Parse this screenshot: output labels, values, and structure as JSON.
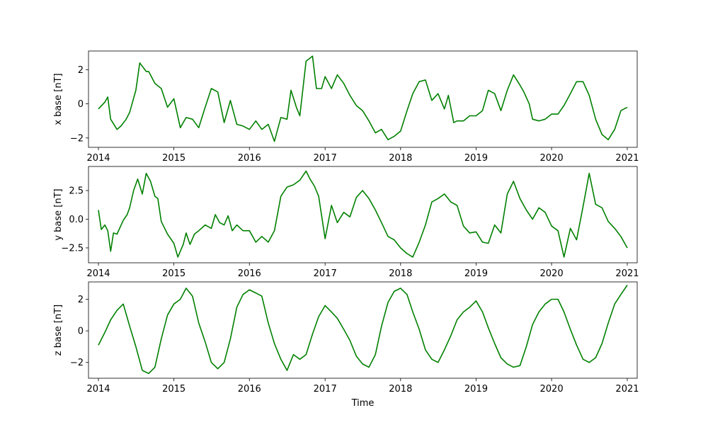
{
  "chart_data": {
    "type": "line",
    "xlabel": "Time",
    "x_range": [
      "2013-11-14",
      "2021-02-18"
    ],
    "x_ticks": [
      "2014",
      "2015",
      "2016",
      "2017",
      "2018",
      "2019",
      "2020",
      "2021"
    ],
    "line_color": "#008000",
    "grid": false,
    "panels": [
      {
        "ylabel": "x base [nT]",
        "ylim": [
          -2.55,
          3.1
        ],
        "yticks": [
          -2,
          0,
          2
        ],
        "ytick_labels": [
          "−2",
          "0",
          "2"
        ],
        "x": [
          "2014-01-01",
          "2014-02-01",
          "2014-02-15",
          "2014-03-01",
          "2014-04-01",
          "2014-04-20",
          "2014-05-15",
          "2014-06-01",
          "2014-07-01",
          "2014-07-20",
          "2014-08-20",
          "2014-09-01",
          "2014-10-01",
          "2014-11-01",
          "2014-12-01",
          "2015-01-01",
          "2015-02-01",
          "2015-03-01",
          "2015-04-01",
          "2015-05-01",
          "2015-06-01",
          "2015-07-01",
          "2015-08-01",
          "2015-09-01",
          "2015-10-01",
          "2015-11-01",
          "2015-12-01",
          "2016-01-01",
          "2016-02-01",
          "2016-03-01",
          "2016-04-01",
          "2016-05-01",
          "2016-06-01",
          "2016-07-01",
          "2016-07-20",
          "2016-08-15",
          "2016-09-01",
          "2016-10-01",
          "2016-11-01",
          "2016-11-20",
          "2016-12-15",
          "2017-01-01",
          "2017-02-01",
          "2017-03-01",
          "2017-04-01",
          "2017-05-01",
          "2017-06-01",
          "2017-07-01",
          "2017-08-01",
          "2017-09-01",
          "2017-10-01",
          "2017-11-01",
          "2017-12-01",
          "2018-01-01",
          "2018-02-01",
          "2018-03-01",
          "2018-04-01",
          "2018-05-01",
          "2018-06-01",
          "2018-07-01",
          "2018-08-01",
          "2018-08-20",
          "2018-09-15",
          "2018-10-01",
          "2018-11-01",
          "2018-12-01",
          "2019-01-01",
          "2019-02-01",
          "2019-03-01",
          "2019-04-01",
          "2019-05-01",
          "2019-06-01",
          "2019-07-01",
          "2019-08-01",
          "2019-08-20",
          "2019-09-15",
          "2019-10-01",
          "2019-11-01",
          "2019-12-01",
          "2020-01-01",
          "2020-02-01",
          "2020-03-01",
          "2020-04-01",
          "2020-05-01",
          "2020-06-01",
          "2020-07-01",
          "2020-08-01",
          "2020-09-01",
          "2020-10-01",
          "2020-11-01",
          "2020-12-01",
          "2021-01-01"
        ],
        "values": [
          -0.3,
          0.1,
          0.4,
          -0.9,
          -1.5,
          -1.3,
          -0.9,
          -0.5,
          0.8,
          2.4,
          1.9,
          1.9,
          1.2,
          0.9,
          -0.2,
          0.3,
          -1.4,
          -0.8,
          -0.9,
          -1.4,
          -0.2,
          0.9,
          0.7,
          -1.1,
          0.2,
          -1.2,
          -1.3,
          -1.5,
          -1.0,
          -1.5,
          -1.2,
          -2.2,
          -0.8,
          -0.9,
          0.8,
          -0.2,
          -0.7,
          2.5,
          2.8,
          0.9,
          0.9,
          1.6,
          0.9,
          1.7,
          1.2,
          0.5,
          -0.1,
          -0.4,
          -1.0,
          -1.7,
          -1.5,
          -2.1,
          -1.9,
          -1.6,
          -0.4,
          0.6,
          1.3,
          1.4,
          0.2,
          0.6,
          -0.3,
          0.5,
          -1.1,
          -1.0,
          -1.0,
          -0.7,
          -0.7,
          -0.4,
          0.8,
          0.6,
          -0.4,
          0.8,
          1.7,
          1.1,
          0.7,
          0.0,
          -0.9,
          -1.0,
          -0.9,
          -0.6,
          -0.6,
          -0.1,
          0.6,
          1.3,
          1.3,
          0.5,
          -0.9,
          -1.8,
          -2.1,
          -1.5,
          -0.4,
          -0.2
        ],
        "note_series_mismatch": null
      },
      {
        "ylabel": "y base [nT]",
        "ylim": [
          -3.8,
          4.6
        ],
        "yticks": [
          -2.5,
          0.0,
          2.5
        ],
        "ytick_labels": [
          "−2.5",
          "0.0",
          "2.5"
        ],
        "x": [
          "2014-01-01",
          "2014-01-15",
          "2014-02-01",
          "2014-02-15",
          "2014-03-01",
          "2014-03-15",
          "2014-04-01",
          "2014-05-01",
          "2014-05-20",
          "2014-06-01",
          "2014-06-20",
          "2014-07-10",
          "2014-08-01",
          "2014-08-20",
          "2014-09-10",
          "2014-10-01",
          "2014-10-15",
          "2014-11-01",
          "2014-12-01",
          "2015-01-01",
          "2015-01-20",
          "2015-02-15",
          "2015-03-01",
          "2015-03-20",
          "2015-04-10",
          "2015-05-01",
          "2015-06-01",
          "2015-07-01",
          "2015-07-20",
          "2015-08-10",
          "2015-09-01",
          "2015-09-20",
          "2015-10-10",
          "2015-11-01",
          "2015-12-01",
          "2016-01-01",
          "2016-02-01",
          "2016-03-01",
          "2016-04-01",
          "2016-05-01",
          "2016-06-01",
          "2016-07-01",
          "2016-08-01",
          "2016-09-01",
          "2016-10-01",
          "2016-10-20",
          "2016-11-10",
          "2016-12-01",
          "2017-01-01",
          "2017-02-01",
          "2017-03-01",
          "2017-04-01",
          "2017-05-01",
          "2017-06-01",
          "2017-07-01",
          "2017-08-01",
          "2017-09-01",
          "2017-10-01",
          "2017-11-01",
          "2017-12-01",
          "2018-01-01",
          "2018-02-01",
          "2018-03-01",
          "2018-04-01",
          "2018-05-01",
          "2018-06-01",
          "2018-07-01",
          "2018-08-01",
          "2018-09-01",
          "2018-10-01",
          "2018-11-01",
          "2018-12-01",
          "2019-01-01",
          "2019-02-01",
          "2019-03-01",
          "2019-04-01",
          "2019-05-01",
          "2019-06-01",
          "2019-07-01",
          "2019-08-01",
          "2019-09-01",
          "2019-10-01",
          "2019-11-01",
          "2019-12-01",
          "2020-01-01",
          "2020-02-01",
          "2020-03-01",
          "2020-04-01",
          "2020-05-01",
          "2020-06-01",
          "2020-07-01",
          "2020-08-01",
          "2020-09-01",
          "2020-10-01",
          "2020-11-01",
          "2020-12-01",
          "2021-01-01"
        ],
        "values": [
          0.8,
          -0.9,
          -0.5,
          -1.0,
          -2.8,
          -1.2,
          -1.3,
          -0.1,
          0.4,
          1.0,
          2.5,
          3.5,
          2.2,
          4.0,
          3.3,
          2.0,
          1.8,
          -0.2,
          -1.3,
          -2.1,
          -3.3,
          -2.2,
          -1.2,
          -2.2,
          -1.3,
          -1.0,
          -0.5,
          -0.8,
          0.4,
          -0.3,
          -0.5,
          0.3,
          -1.0,
          -0.5,
          -1.0,
          -1.0,
          -2.0,
          -1.5,
          -2.0,
          -1.0,
          2.0,
          2.8,
          3.0,
          3.4,
          4.2,
          3.5,
          2.9,
          2.0,
          -1.7,
          1.2,
          -0.3,
          0.6,
          0.2,
          1.9,
          2.5,
          1.8,
          0.8,
          -0.3,
          -1.5,
          -1.8,
          -2.5,
          -3.0,
          -3.3,
          -2.0,
          -0.5,
          1.5,
          1.8,
          2.2,
          1.5,
          1.2,
          -0.6,
          -1.2,
          -1.1,
          -2.0,
          -2.1,
          -0.5,
          -1.2,
          2.2,
          3.3,
          1.8,
          0.8,
          0.0,
          1.0,
          0.6,
          -0.6,
          -1.0,
          -3.3,
          -0.8,
          -1.8,
          1.1,
          4.0,
          1.3,
          1.0,
          -0.2,
          -0.8,
          -1.5,
          -2.5
        ],
        "note_series_mismatch": null
      },
      {
        "ylabel": "z base [nT]",
        "ylim": [
          -3.0,
          3.1
        ],
        "yticks": [
          -2,
          0,
          2
        ],
        "ytick_labels": [
          "−2",
          "0",
          "2"
        ],
        "x": [
          "2014-01-01",
          "2014-02-01",
          "2014-03-01",
          "2014-04-01",
          "2014-05-01",
          "2014-06-01",
          "2014-07-01",
          "2014-08-01",
          "2014-09-01",
          "2014-10-01",
          "2014-11-01",
          "2014-12-01",
          "2015-01-01",
          "2015-02-01",
          "2015-03-01",
          "2015-04-01",
          "2015-05-01",
          "2015-06-01",
          "2015-07-01",
          "2015-08-01",
          "2015-09-01",
          "2015-10-01",
          "2015-11-01",
          "2015-12-01",
          "2016-01-01",
          "2016-02-01",
          "2016-03-01",
          "2016-04-01",
          "2016-05-01",
          "2016-06-01",
          "2016-07-01",
          "2016-08-01",
          "2016-09-01",
          "2016-10-01",
          "2016-11-01",
          "2016-12-01",
          "2017-01-01",
          "2017-02-01",
          "2017-03-01",
          "2017-04-01",
          "2017-05-01",
          "2017-06-01",
          "2017-07-01",
          "2017-08-01",
          "2017-09-01",
          "2017-10-01",
          "2017-11-01",
          "2017-12-01",
          "2018-01-01",
          "2018-02-01",
          "2018-03-01",
          "2018-04-01",
          "2018-05-01",
          "2018-06-01",
          "2018-07-01",
          "2018-08-01",
          "2018-09-01",
          "2018-10-01",
          "2018-11-01",
          "2018-12-01",
          "2019-01-01",
          "2019-02-01",
          "2019-03-01",
          "2019-04-01",
          "2019-05-01",
          "2019-06-01",
          "2019-07-01",
          "2019-08-01",
          "2019-09-01",
          "2019-10-01",
          "2019-11-01",
          "2019-12-01",
          "2020-01-01",
          "2020-02-01",
          "2020-03-01",
          "2020-04-01",
          "2020-05-01",
          "2020-06-01",
          "2020-07-01",
          "2020-08-01",
          "2020-09-01",
          "2020-10-01",
          "2020-11-01",
          "2020-12-01",
          "2021-01-01"
        ],
        "values": [
          -0.9,
          -0.1,
          0.7,
          1.3,
          1.7,
          0.3,
          -1.0,
          -2.5,
          -2.7,
          -2.3,
          -0.5,
          1.0,
          1.7,
          2.0,
          2.7,
          2.2,
          0.5,
          -0.7,
          -2.0,
          -2.4,
          -2.0,
          -0.5,
          1.5,
          2.3,
          2.6,
          2.4,
          2.2,
          0.5,
          -0.8,
          -1.8,
          -2.5,
          -1.5,
          -1.8,
          -1.5,
          -0.2,
          0.9,
          1.6,
          1.2,
          0.8,
          0.1,
          -0.6,
          -1.6,
          -2.1,
          -2.3,
          -1.5,
          0.3,
          1.8,
          2.5,
          2.7,
          2.3,
          1.2,
          0.1,
          -1.2,
          -1.8,
          -2.0,
          -1.2,
          -0.3,
          0.7,
          1.2,
          1.5,
          1.9,
          1.2,
          0.2,
          -0.8,
          -1.7,
          -2.1,
          -2.3,
          -2.2,
          -1.0,
          0.4,
          1.2,
          1.7,
          2.0,
          2.0,
          1.2,
          0.1,
          -0.9,
          -1.8,
          -2.0,
          -1.7,
          -0.8,
          0.5,
          1.7,
          2.3,
          2.9
        ],
        "note_series_mismatch": null
      }
    ]
  }
}
